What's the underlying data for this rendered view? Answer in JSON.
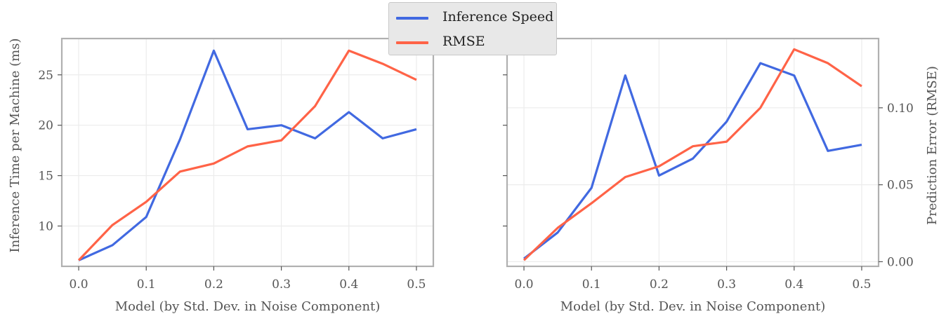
{
  "chart_data": [
    {
      "type": "line",
      "xlabel": "Model (by Std. Dev. in Noise Component)",
      "ylabel": "Inference Time per Machine (ms)",
      "xlim": [
        -0.025,
        0.525
      ],
      "ylim": [
        6.0,
        28.6
      ],
      "xticks": [
        "0.0",
        "0.1",
        "0.2",
        "0.3",
        "0.4",
        "0.5"
      ],
      "yticks": [
        "10",
        "15",
        "20",
        "25"
      ],
      "x": [
        0.0,
        0.05,
        0.1,
        0.15,
        0.2,
        0.25,
        0.3,
        0.35,
        0.4,
        0.45,
        0.5
      ],
      "series": [
        {
          "name": "Inference Speed",
          "color": "#4169e1",
          "values": [
            6.6,
            8.1,
            10.9,
            18.6,
            27.4,
            19.6,
            20.0,
            18.7,
            21.3,
            18.7,
            19.6
          ]
        },
        {
          "name": "RMSE",
          "color": "#ff6347",
          "values": [
            6.6,
            10.1,
            12.4,
            15.4,
            16.2,
            17.9,
            18.5,
            21.9,
            27.4,
            26.1,
            24.5
          ]
        }
      ],
      "grid": true
    },
    {
      "type": "line",
      "xlabel": "Model (by Std. Dev. in Noise Component)",
      "ylabel": "Prediction Error (RMSE)",
      "xlim": [
        -0.025,
        0.525
      ],
      "ylim": [
        -0.003,
        0.145
      ],
      "xticks": [
        "0.0",
        "0.1",
        "0.2",
        "0.3",
        "0.4",
        "0.5"
      ],
      "yticks": [
        "0.00",
        "0.05",
        "0.10"
      ],
      "x": [
        0.0,
        0.05,
        0.1,
        0.15,
        0.2,
        0.25,
        0.3,
        0.35,
        0.4,
        0.45,
        0.5
      ],
      "series": [
        {
          "name": "Inference Speed",
          "color": "#4169e1",
          "values": [
            0.002,
            0.019,
            0.048,
            0.121,
            0.056,
            0.067,
            0.091,
            0.129,
            0.121,
            0.072,
            0.076
          ]
        },
        {
          "name": "RMSE",
          "color": "#ff6347",
          "values": [
            0.001,
            0.022,
            0.038,
            0.055,
            0.062,
            0.075,
            0.078,
            0.1,
            0.138,
            0.129,
            0.114
          ]
        }
      ],
      "grid": true
    }
  ],
  "legend": {
    "placement": "top-center",
    "items": [
      {
        "label": "Inference Speed",
        "color": "#4169e1"
      },
      {
        "label": "RMSE",
        "color": "#ff6347"
      }
    ]
  }
}
